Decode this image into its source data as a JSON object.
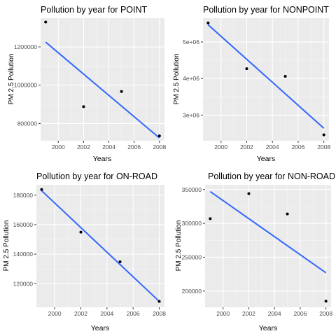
{
  "chart_data": [
    {
      "type": "scatter",
      "title": "Pollution by year for  POINT",
      "xlabel": "Years",
      "ylabel": "PM 2.5 Pollution",
      "x_ticks": [
        "2000",
        "2002",
        "2004",
        "2006",
        "2008"
      ],
      "y_ticks": [
        {
          "value": 800000,
          "label": "800000"
        },
        {
          "value": 1000000,
          "label": "1000000"
        },
        {
          "value": 1200000,
          "label": "1200000"
        }
      ],
      "xlim": [
        1998.6,
        2008.4
      ],
      "ylim": [
        710000,
        1350000
      ],
      "points": [
        {
          "x": 1999,
          "y": 1330000
        },
        {
          "x": 2002,
          "y": 888000
        },
        {
          "x": 2005,
          "y": 967000
        },
        {
          "x": 2008,
          "y": 735000
        }
      ],
      "trend": {
        "x": [
          1999,
          2008
        ],
        "y": [
          1225000,
          724000
        ]
      },
      "grid": true,
      "point_color": "#000000",
      "line_color": "#3366FF",
      "panel_color": "#EBEBEB"
    },
    {
      "type": "scatter",
      "title": "Pollution by year for  NONPOINT",
      "xlabel": "Years",
      "ylabel": "PM 2.5 Pollution",
      "x_ticks": [
        "2000",
        "2002",
        "2004",
        "2006",
        "2008"
      ],
      "y_ticks": [
        {
          "value": 3000000,
          "label": "3e+06"
        },
        {
          "value": 4000000,
          "label": "4e+06"
        },
        {
          "value": 5000000,
          "label": "5e+06"
        }
      ],
      "xlim": [
        1998.6,
        2008.4
      ],
      "ylim": [
        2300000,
        5650000
      ],
      "points": [
        {
          "x": 1999,
          "y": 5520000
        },
        {
          "x": 2002,
          "y": 4270000
        },
        {
          "x": 2005,
          "y": 4060000
        },
        {
          "x": 2008,
          "y": 2460000
        }
      ],
      "trend": {
        "x": [
          1999,
          2008
        ],
        "y": [
          5470000,
          2640000
        ]
      },
      "grid": true,
      "point_color": "#000000",
      "line_color": "#3366FF",
      "panel_color": "#EBEBEB"
    },
    {
      "type": "scatter",
      "title": "Pollution by year for  ON-ROAD",
      "xlabel": "Years",
      "ylabel": "PM 2.5 Pollution",
      "x_ticks": [
        "2000",
        "2002",
        "2004",
        "2006",
        "2008"
      ],
      "y_ticks": [
        {
          "value": 120000,
          "label": "120000"
        },
        {
          "value": 140000,
          "label": "140000"
        },
        {
          "value": 160000,
          "label": "160000"
        },
        {
          "value": 180000,
          "label": "180000"
        }
      ],
      "xlim": [
        1998.6,
        2008.4
      ],
      "ylim": [
        104000,
        187000
      ],
      "points": [
        {
          "x": 1999,
          "y": 183800
        },
        {
          "x": 2002,
          "y": 154900
        },
        {
          "x": 2005,
          "y": 134800
        },
        {
          "x": 2008,
          "y": 108000
        }
      ],
      "trend": {
        "x": [
          1999,
          2008
        ],
        "y": [
          183000,
          108000
        ]
      },
      "grid": true,
      "point_color": "#000000",
      "line_color": "#3366FF",
      "panel_color": "#EBEBEB"
    },
    {
      "type": "scatter",
      "title": "Pollution by year for  NON-ROAD",
      "xlabel": "Years",
      "ylabel": "PM 2.5 Pollution",
      "x_ticks": [
        "2000",
        "2002",
        "2004",
        "2006",
        "2008"
      ],
      "y_ticks": [
        {
          "value": 200000,
          "label": "200000"
        },
        {
          "value": 250000,
          "label": "250000"
        },
        {
          "value": 300000,
          "label": "300000"
        },
        {
          "value": 350000,
          "label": "350000"
        }
      ],
      "xlim": [
        1998.6,
        2008.4
      ],
      "ylim": [
        176000,
        357000
      ],
      "points": [
        {
          "x": 1999,
          "y": 307000
        },
        {
          "x": 2002,
          "y": 344000
        },
        {
          "x": 2005,
          "y": 314000
        },
        {
          "x": 2008,
          "y": 185000
        }
      ],
      "trend": {
        "x": [
          1999,
          2008
        ],
        "y": [
          347000,
          227000
        ]
      },
      "grid": true,
      "point_color": "#000000",
      "line_color": "#3366FF",
      "panel_color": "#EBEBEB"
    }
  ]
}
